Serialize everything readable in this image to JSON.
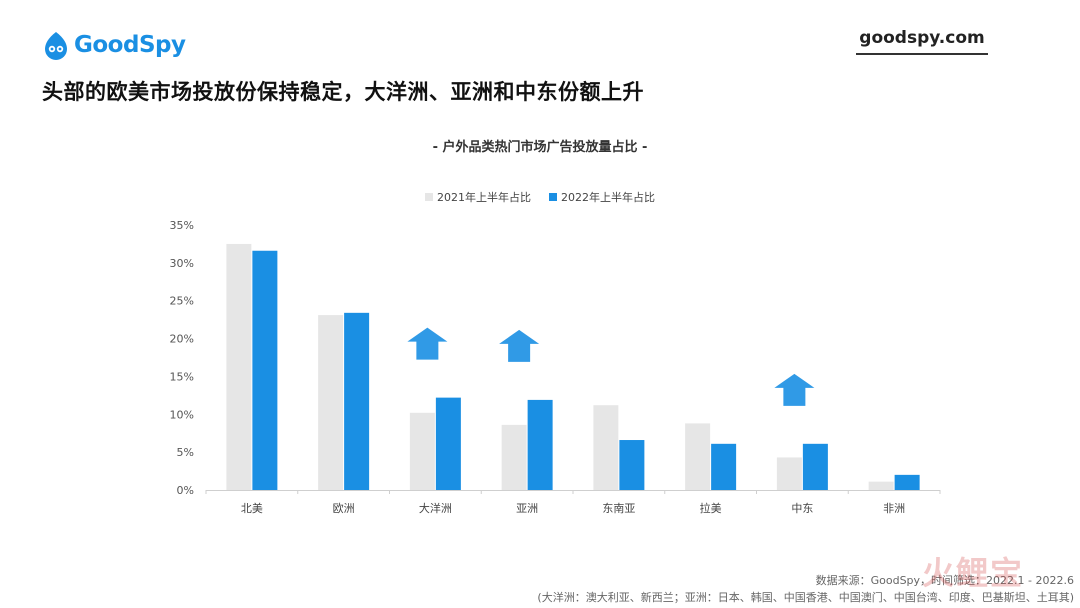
{
  "brand": {
    "logo_text": "GoodSpy",
    "site": "goodspy.com"
  },
  "headline": "头部的欧美市场投放份保持稳定，大洋洲、亚洲和中东份额上升",
  "colors": {
    "series_2021": "#e6e6e6",
    "series_2022": "#1a8fe3",
    "arrow": "#1a8fe3"
  },
  "chart_data": {
    "type": "bar",
    "title": "- 户外品类热门市场广告投放量占比 -",
    "categories": [
      "北美",
      "欧洲",
      "大洋洲",
      "亚洲",
      "东南亚",
      "拉美",
      "中东",
      "非洲"
    ],
    "series": [
      {
        "name": "2021年上半年占比",
        "values": [
          32.5,
          23.1,
          10.2,
          8.6,
          11.2,
          8.8,
          4.3,
          1.1
        ]
      },
      {
        "name": "2022年上半年占比",
        "values": [
          31.6,
          23.4,
          12.2,
          11.9,
          6.6,
          6.1,
          6.1,
          2.0
        ]
      }
    ],
    "yticks": [
      "0%",
      "5%",
      "10%",
      "15%",
      "20%",
      "25%",
      "30%",
      "35%"
    ],
    "ylim": [
      0,
      35
    ],
    "legend_position": "top-center",
    "grid": false,
    "up_arrow_categories": [
      "大洋洲",
      "亚洲",
      "中东"
    ]
  },
  "footer": {
    "source": "数据来源：GoodSpy，时间筛选：2022.1 - 2022.6",
    "note": "(大洋洲：澳大利亚、新西兰；亚洲：日本、韩国、中国香港、中国澳门、中国台湾、印度、巴基斯坦、土耳其)"
  },
  "watermark": "火鲤宝"
}
